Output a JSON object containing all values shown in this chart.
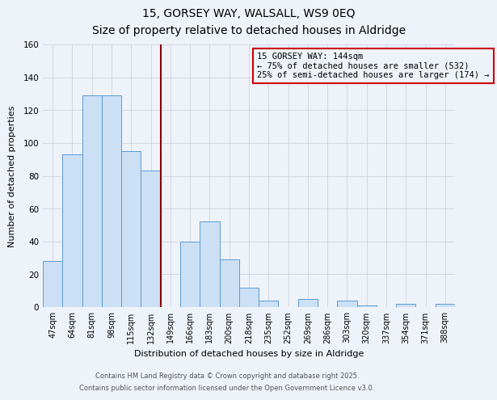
{
  "title": "15, GORSEY WAY, WALSALL, WS9 0EQ",
  "subtitle": "Size of property relative to detached houses in Aldridge",
  "xlabel": "Distribution of detached houses by size in Aldridge",
  "ylabel": "Number of detached properties",
  "bar_labels": [
    "47sqm",
    "64sqm",
    "81sqm",
    "98sqm",
    "115sqm",
    "132sqm",
    "149sqm",
    "166sqm",
    "183sqm",
    "200sqm",
    "218sqm",
    "235sqm",
    "252sqm",
    "269sqm",
    "286sqm",
    "303sqm",
    "320sqm",
    "337sqm",
    "354sqm",
    "371sqm",
    "388sqm"
  ],
  "bar_values": [
    28,
    93,
    129,
    129,
    95,
    83,
    0,
    40,
    52,
    29,
    12,
    4,
    0,
    5,
    0,
    4,
    1,
    0,
    2,
    0,
    2
  ],
  "bar_color": "#cce0f5",
  "bar_edge_color": "#5b9bd5",
  "vline_pos": 6.5,
  "vline_color": "#8b0000",
  "annotation_line1": "15 GORSEY WAY: 144sqm",
  "annotation_line2": "← 75% of detached houses are smaller (532)",
  "annotation_line3": "25% of semi-detached houses are larger (174) →",
  "annotation_box_edge": "#cc0000",
  "background_color": "#eef2f9",
  "grid_color": "#c8cdd8",
  "ylim": [
    0,
    160
  ],
  "yticks": [
    0,
    20,
    40,
    60,
    80,
    100,
    120,
    140,
    160
  ],
  "footer1": "Contains HM Land Registry data © Crown copyright and database right 2025.",
  "footer2": "Contains public sector information licensed under the Open Government Licence v3.0."
}
